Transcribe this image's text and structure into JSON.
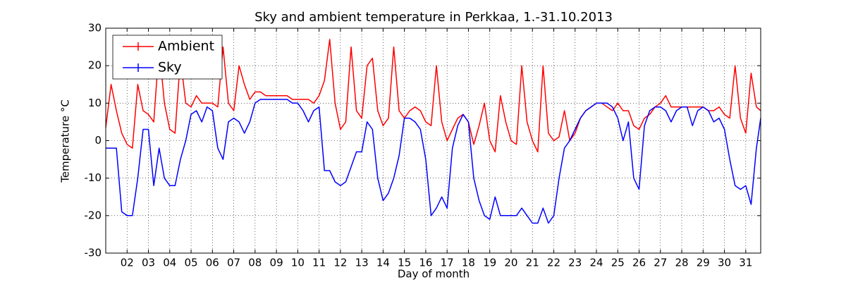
{
  "chart_data": {
    "type": "line",
    "title": "Sky and ambient temperature in Perkkaa, 1.-31.10.2013",
    "xlabel": "Day of month",
    "ylabel": "Temperature °C",
    "xlim": [
      1,
      31.7
    ],
    "ylim": [
      -30,
      30
    ],
    "yticks": [
      -30,
      -20,
      -10,
      0,
      10,
      20,
      30
    ],
    "xticks": [
      {
        "value": 2,
        "label": "02"
      },
      {
        "value": 3,
        "label": "03"
      },
      {
        "value": 4,
        "label": "04"
      },
      {
        "value": 5,
        "label": "05"
      },
      {
        "value": 6,
        "label": "06"
      },
      {
        "value": 7,
        "label": "07"
      },
      {
        "value": 8,
        "label": "08"
      },
      {
        "value": 9,
        "label": "09"
      },
      {
        "value": 10,
        "label": "10"
      },
      {
        "value": 11,
        "label": "11"
      },
      {
        "value": 12,
        "label": "12"
      },
      {
        "value": 13,
        "label": "13"
      },
      {
        "value": 14,
        "label": "14"
      },
      {
        "value": 15,
        "label": "15"
      },
      {
        "value": 16,
        "label": "16"
      },
      {
        "value": 17,
        "label": "17"
      },
      {
        "value": 18,
        "label": "18"
      },
      {
        "value": 19,
        "label": "19"
      },
      {
        "value": 20,
        "label": "20"
      },
      {
        "value": 21,
        "label": "21"
      },
      {
        "value": 22,
        "label": "22"
      },
      {
        "value": 23,
        "label": "23"
      },
      {
        "value": 24,
        "label": "24"
      },
      {
        "value": 25,
        "label": "25"
      },
      {
        "value": 26,
        "label": "26"
      },
      {
        "value": 27,
        "label": "27"
      },
      {
        "value": 28,
        "label": "28"
      },
      {
        "value": 29,
        "label": "29"
      },
      {
        "value": 30,
        "label": "30"
      },
      {
        "value": 31,
        "label": "31"
      }
    ],
    "grid": true,
    "legend": "upper left",
    "x": [
      1,
      1.25,
      1.5,
      1.75,
      2,
      2.25,
      2.5,
      2.75,
      3,
      3.25,
      3.5,
      3.75,
      4,
      4.25,
      4.5,
      4.75,
      5,
      5.25,
      5.5,
      5.75,
      6,
      6.25,
      6.5,
      6.75,
      7,
      7.25,
      7.5,
      7.75,
      8,
      8.25,
      8.5,
      8.75,
      9,
      9.25,
      9.5,
      9.75,
      10,
      10.25,
      10.5,
      10.75,
      11,
      11.25,
      11.5,
      11.75,
      12,
      12.25,
      12.5,
      12.75,
      13,
      13.25,
      13.5,
      13.75,
      14,
      14.25,
      14.5,
      14.75,
      15,
      15.25,
      15.5,
      15.75,
      16,
      16.25,
      16.5,
      16.75,
      17,
      17.25,
      17.5,
      17.75,
      18,
      18.25,
      18.5,
      18.75,
      19,
      19.25,
      19.5,
      19.75,
      20,
      20.25,
      20.5,
      20.75,
      21,
      21.25,
      21.5,
      21.75,
      22,
      22.25,
      22.5,
      22.75,
      23,
      23.25,
      23.5,
      23.75,
      24,
      24.25,
      24.5,
      24.75,
      25,
      25.25,
      25.5,
      25.75,
      26,
      26.25,
      26.5,
      26.75,
      27,
      27.25,
      27.5,
      27.75,
      28,
      28.25,
      28.5,
      28.75,
      29,
      29.25,
      29.5,
      29.75,
      30,
      30.25,
      30.5,
      30.75,
      31,
      31.25,
      31.5,
      31.7
    ],
    "series": [
      {
        "name": "Ambient",
        "color": "#ff0000",
        "values": [
          3.5,
          15,
          8,
          2,
          -1,
          -2,
          15,
          8,
          7,
          5,
          25,
          10,
          3,
          2,
          22,
          10,
          9,
          12,
          10,
          10,
          10,
          9,
          25,
          10,
          8,
          20,
          15,
          11,
          13,
          13,
          12,
          12,
          12,
          12,
          12,
          11,
          11,
          11,
          11,
          10,
          12,
          16,
          27,
          10,
          3,
          5,
          25,
          8,
          6,
          20,
          22,
          8,
          4,
          6,
          25,
          8,
          6,
          8,
          9,
          8,
          5,
          4,
          20,
          5,
          0,
          3,
          6,
          7,
          5,
          -1,
          4,
          10,
          0,
          -3,
          12,
          5,
          0,
          -1,
          20,
          5,
          0,
          -3,
          20,
          2,
          0,
          1,
          8,
          0,
          2,
          6,
          8,
          9,
          10,
          10,
          9,
          8,
          10,
          8,
          8,
          4,
          3,
          6,
          7,
          9,
          10,
          12,
          9,
          9,
          9,
          9,
          9,
          9,
          9,
          8,
          8,
          9,
          7,
          6,
          20,
          6,
          2,
          18,
          9,
          8
        ]
      },
      {
        "name": "Sky",
        "color": "#0000ff",
        "values": [
          -2,
          -2,
          -2,
          -19,
          -20,
          -20,
          -10,
          3,
          3,
          -12,
          -2,
          -10,
          -12,
          -12,
          -5,
          0,
          7,
          8,
          5,
          9,
          8,
          -2,
          -5,
          5,
          6,
          5,
          2,
          5,
          10,
          11,
          11,
          11,
          11,
          11,
          11,
          10,
          10,
          8,
          5,
          8,
          9,
          -8,
          -8,
          -11,
          -12,
          -11,
          -7,
          -3,
          -3,
          5,
          3,
          -10,
          -16,
          -14,
          -10,
          -4,
          6,
          6,
          5,
          3,
          -5,
          -20,
          -18,
          -15,
          -18,
          -2,
          4,
          7,
          5,
          -10,
          -16,
          -20,
          -21,
          -15,
          -20,
          -20,
          -20,
          -20,
          -18,
          -20,
          -22,
          -22,
          -18,
          -22,
          -20,
          -10,
          -2,
          0,
          3,
          6,
          8,
          9,
          10,
          10,
          10,
          9,
          6,
          0,
          5,
          -10,
          -13,
          4,
          8,
          9,
          9,
          8,
          5,
          8,
          9,
          9,
          4,
          8,
          9,
          8,
          5,
          6,
          3,
          -5,
          -12,
          -13,
          -12,
          -17,
          -2,
          6
        ]
      }
    ]
  }
}
